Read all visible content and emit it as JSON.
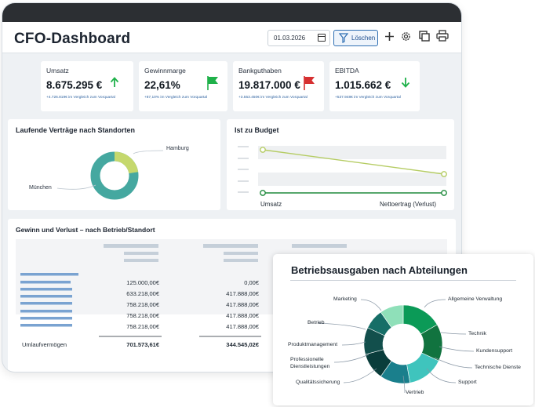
{
  "header": {
    "title": "CFO-Dashboard",
    "date_value": "01.03.2026",
    "filter_label": "Löschen",
    "icons": [
      "calendar-icon",
      "filter-icon",
      "plus-icon",
      "gear-icon",
      "copy-icon",
      "print-icon"
    ]
  },
  "kpis": [
    {
      "label": "Umsatz",
      "value": "8.675.295 €",
      "sub": "+4.726.819€ im Vergleich zum Vorquartal",
      "icon": "arrow-up-icon",
      "icon_color": "#1fb14a"
    },
    {
      "label": "Gewinnmarge",
      "value": "22,61%",
      "sub": "+87,10% im Vergleich zum Vorquartal",
      "icon": "flag-icon",
      "icon_color": "#1fb14a"
    },
    {
      "label": "Bankguthaben",
      "value": "19.817.000 €",
      "sub": "+3.553.450€ im Vergleich zum Vorquartal",
      "icon": "flag-icon",
      "icon_color": "#d63031"
    },
    {
      "label": "EBITDA",
      "value": "1.015.662 €",
      "sub": "+537.948€ im Vergleich zum Vorquartal",
      "icon": "arrow-down-icon",
      "icon_color": "#1fb14a"
    }
  ],
  "contracts": {
    "title": "Laufende Verträge nach Standorten",
    "labels": {
      "hamburg": "Hamburg",
      "muenchen": "München"
    }
  },
  "budget": {
    "title": "Ist zu Budget",
    "left_label": "Umsatz",
    "right_label": "Nettoertrag (Verlust)"
  },
  "pnl": {
    "title": "Gewinn und Verlust – nach Betrieb/Standort",
    "col1": [
      "125.000,00€",
      "633.218,00€",
      "758.218,00€",
      "758.218,00€",
      "758.218,00€"
    ],
    "col2": [
      "0,00€",
      "417.888,00€",
      "417.888,00€",
      "417.888,00€",
      "417.888,00€"
    ],
    "total_label": "Umlaufvermögen",
    "total_col1": "701.573,61€",
    "total_col2": "344.545,02€"
  },
  "popup": {
    "title": "Betriebsausgaben nach Abteilungen",
    "labels": {
      "marketing": "Marketing",
      "allgemeine": "Allgemeine Verwaltung",
      "betrieb": "Betrieb",
      "technik": "Technik",
      "produkt": "Produktmanagement",
      "kundensupport": "Kundensupport",
      "prof_1": "Professionelle",
      "prof_2": "Dienstleistungen",
      "techdienste": "Technische Dienste",
      "qualitaet": "Qualitätssicherung",
      "support": "Support",
      "vertrieb": "Vertrieb"
    }
  },
  "colors": {
    "topbar": "#2c2f33",
    "accent_blue": "#2f6fb3",
    "donut_teal": "#45a8a0",
    "donut_lime": "#c5d86d",
    "budget_lime": "#b5cc63",
    "budget_green": "#1e8a3c"
  }
}
